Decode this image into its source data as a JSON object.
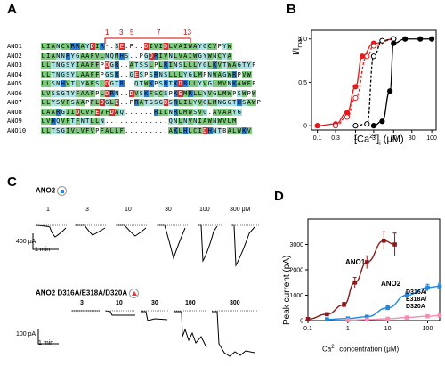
{
  "panels": {
    "A": {
      "letter": "A",
      "column_marks": [
        "1",
        "3",
        "5",
        "7",
        "13"
      ],
      "rows": [
        {
          "name": "ANO1",
          "seq": "LIANCVRRAYDIR-.SE.P..DIVIDLVAIWAYGCVPYW"
        },
        {
          "name": "ANO2",
          "seq": "LIANNRYGAAFVLNQMHS..PGDRIVNLVAIWGYWNCYA"
        },
        {
          "name": "ANO3",
          "seq": "LLTNGSYIAAFFPDGR..ATSSLPLRINSLLLYGLKVTWAGTYP"
        },
        {
          "name": "ANO4",
          "seq": "LLTNGSYLAAFFPGSR..GESPSRNSLLLYGLMPNWAGWRPVW"
        },
        {
          "name": "ANO5",
          "seq": "LLSNHVTLYAFSLDGTR..QTWKPSRTKDRLLYVGLMVNKAWFP"
        },
        {
          "name": "ANO6",
          "seq": "LVSSGTYFAAFPLDRN..DVSKFSCSPKEMRLLYVGLMWPSWPW"
        },
        {
          "name": "ANO7",
          "seq": "LLYSVFSAAPFLDGLE..PRATGSGDSRLILYVGLMNGGTHSAWP"
        },
        {
          "name": "ANO8",
          "seq": "LAARGIIDCVFEVFDAQ......RILNRLMWSVG.AVAAYG"
        },
        {
          "name": "ANO9",
          "seq": "LVHQVFTFNTLLN.............QNLNVNIAWNWVLM"
        },
        {
          "name": "ANO10",
          "seq": "LLTSGIVLVFVPFALLF.........AKLHLCIDHNTBALWKV"
        }
      ]
    },
    "B": {
      "letter": "B",
      "ylabel": "I/I",
      "ylabel_sub": "max",
      "xlabel": "[Ca",
      "xlabel_sup": "2+",
      "xlabel_tail": "]",
      "xlabel_sub": "i",
      "xlabel_unit": "(μM)",
      "chart_data": {
        "type": "line",
        "xscale": "log",
        "xlim": [
          0.07,
          130
        ],
        "ylim": [
          -0.05,
          1.1
        ],
        "xticks": [
          "0.1",
          "0.3",
          "1",
          "3",
          "10",
          "30",
          "100"
        ],
        "yticks": [
          "0",
          "0.5",
          "1.0"
        ],
        "series": [
          {
            "color": "#e41a1c",
            "style": "solid",
            "marker": "filled-circle",
            "points": [
              [
                0.1,
                0.0
              ],
              [
                0.3,
                0.02
              ],
              [
                0.6,
                0.15
              ],
              [
                1,
                0.45
              ],
              [
                1.5,
                0.8
              ],
              [
                3,
                0.95
              ],
              [
                10,
                1.0
              ]
            ]
          },
          {
            "color": "#e41a1c",
            "style": "dashed",
            "marker": "open-circle",
            "points": [
              [
                0.3,
                0.0
              ],
              [
                0.6,
                0.1
              ],
              [
                1,
                0.32
              ],
              [
                2,
                0.8
              ],
              [
                3,
                0.92
              ],
              [
                10,
                1.0
              ]
            ]
          },
          {
            "color": "#000000",
            "style": "dashed",
            "marker": "open-circle",
            "points": [
              [
                1,
                0.0
              ],
              [
                2,
                0.02
              ],
              [
                3,
                0.8
              ],
              [
                5,
                0.98
              ],
              [
                10,
                1.0
              ]
            ]
          },
          {
            "color": "#000000",
            "style": "solid",
            "marker": "filled-circle",
            "points": [
              [
                3,
                0.0
              ],
              [
                5,
                0.05
              ],
              [
                8,
                0.4
              ],
              [
                10,
                0.95
              ],
              [
                20,
                1.0
              ],
              [
                50,
                1.0
              ],
              [
                100,
                1.0
              ]
            ]
          }
        ]
      }
    },
    "C": {
      "letter": "C",
      "top_title": "ANO2",
      "top_conc": [
        "1",
        "3",
        "10",
        "30",
        "100",
        "300 μM"
      ],
      "top_scale_current": "400 pA",
      "top_scale_time": "1 min",
      "bottom_title": "ANO2  D316A/E318A/D320A",
      "bottom_conc": [
        "3",
        "10",
        "30",
        "100",
        "300"
      ],
      "bottom_scale_current": "100 pA",
      "bottom_scale_time": "1 min",
      "colors": {
        "ano2_marker": "#1e88e5",
        "mutant_marker": "#e53935"
      }
    },
    "D": {
      "letter": "D",
      "ylabel": "Peak current (pA)",
      "xlabel": "Ca",
      "xlabel_sup": "2+",
      "xlabel_tail": " concentration (μM)",
      "label_ano1": "ANO1",
      "label_ano2": "ANO2",
      "label_mutant_lines": [
        "D316A/",
        "E318A/",
        "D320A"
      ],
      "chart_data": {
        "type": "line",
        "xscale": "log",
        "xlim": [
          0.1,
          200
        ],
        "ylim": [
          0,
          4000
        ],
        "xticks": [
          "0.1",
          "1",
          "10",
          "100"
        ],
        "yticks": [
          "0",
          "1000",
          "2000",
          "3000"
        ],
        "series": [
          {
            "name": "ANO1",
            "color": "#8b1a1a",
            "points": [
              [
                0.1,
                60
              ],
              [
                0.3,
                250
              ],
              [
                0.8,
                620
              ],
              [
                1.5,
                1500
              ],
              [
                3,
                2300
              ],
              [
                8,
                3150
              ],
              [
                15,
                3000
              ]
            ],
            "errors": [
              30,
              60,
              100,
              200,
              250,
              350,
              450
            ]
          },
          {
            "name": "ANO2",
            "color": "#1e88e5",
            "points": [
              [
                0.3,
                50
              ],
              [
                1,
                80
              ],
              [
                3,
                150
              ],
              [
                10,
                500
              ],
              [
                30,
                1000
              ],
              [
                100,
                1300
              ],
              [
                200,
                1350
              ]
            ],
            "errors": [
              20,
              20,
              40,
              90,
              120,
              130,
              120
            ]
          },
          {
            "name": "D316A/E318A/D320A",
            "color": "#f48fb1",
            "points": [
              [
                1,
                20
              ],
              [
                3,
                40
              ],
              [
                10,
                70
              ],
              [
                30,
                120
              ],
              [
                100,
                170
              ],
              [
                200,
                200
              ]
            ],
            "errors": [
              10,
              10,
              15,
              20,
              25,
              30
            ]
          }
        ]
      }
    }
  }
}
